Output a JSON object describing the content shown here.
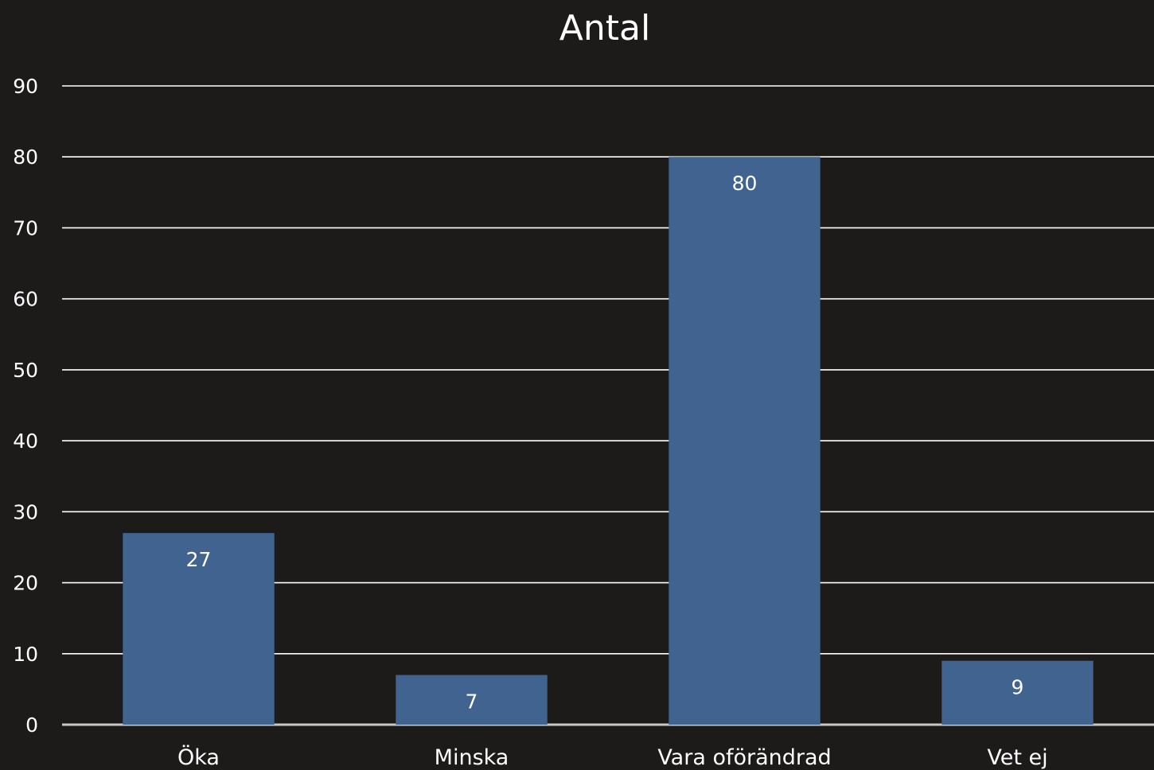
{
  "chart_data": {
    "type": "bar",
    "title": "Antal",
    "categories": [
      "Öka",
      "Minska",
      "Vara oförändrad",
      "Vet ej"
    ],
    "values": [
      27,
      7,
      80,
      9
    ],
    "data_labels": [
      "27",
      "7",
      "80",
      "9"
    ],
    "ylim": [
      0,
      90
    ],
    "yticks": [
      0,
      10,
      20,
      30,
      40,
      50,
      60,
      70,
      80,
      90
    ],
    "ytick_labels": [
      "0",
      "10",
      "20",
      "30",
      "40",
      "50",
      "60",
      "70",
      "80",
      "90"
    ],
    "grid": true,
    "legend": "none",
    "colors": {
      "background": "#1d1a1a",
      "bar": "#41638f",
      "gridline": "#ffffff",
      "text": "#ffffff"
    }
  }
}
